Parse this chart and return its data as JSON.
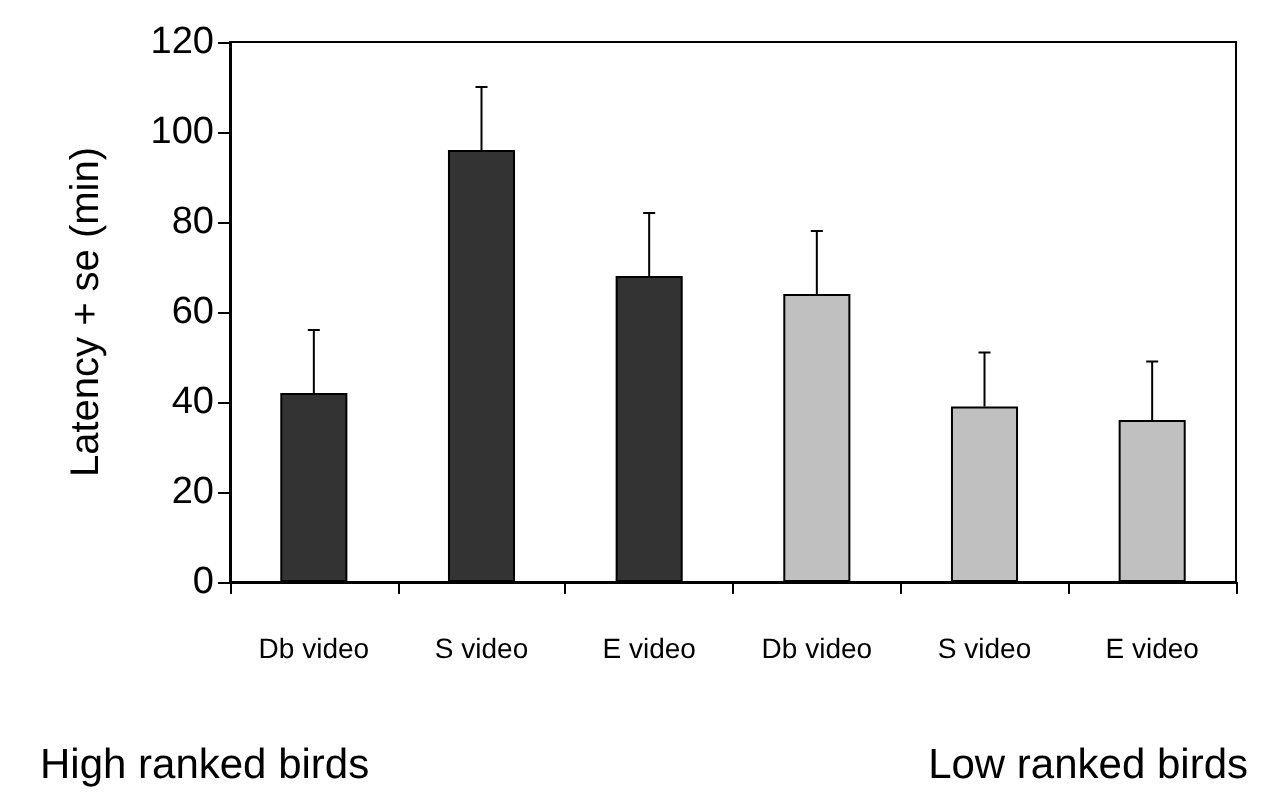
{
  "chart_data": {
    "type": "bar",
    "ylabel": "Latency + se (min)",
    "categories": [
      "Db video",
      "S video",
      "E video",
      "Db video",
      "S video",
      "E video"
    ],
    "values": [
      42,
      96,
      68,
      64,
      39,
      36
    ],
    "colors": [
      "#333333",
      "#333333",
      "#333333",
      "#c0c0c0",
      "#c0c0c0",
      "#c0c0c0"
    ],
    "errors": [
      [
        42,
        56
      ],
      [
        96,
        110
      ],
      [
        68,
        82
      ],
      [
        64,
        78
      ],
      [
        39,
        51
      ],
      [
        36,
        49
      ]
    ],
    "ylim": [
      0,
      120
    ],
    "yticks": [
      0,
      20,
      40,
      60,
      80,
      100,
      120
    ],
    "grid": false,
    "annotations": [
      "High ranked birds",
      "Low ranked birds"
    ]
  }
}
